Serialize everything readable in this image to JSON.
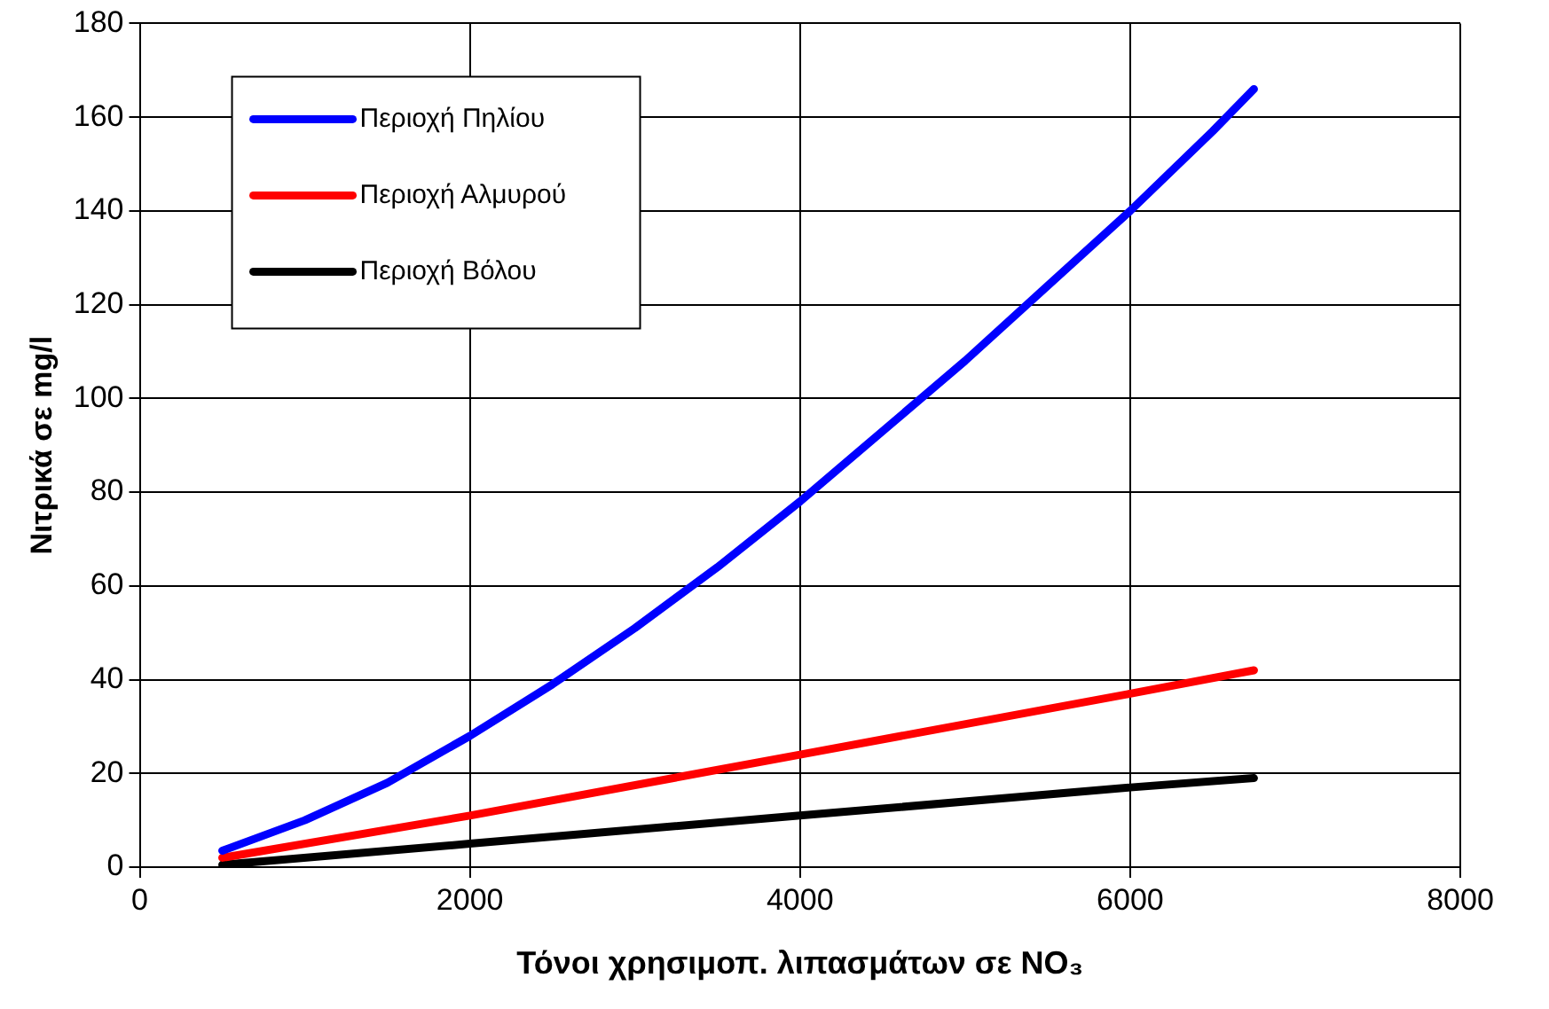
{
  "chart_data": {
    "type": "line",
    "xlabel": "Τόνοι χρησιμοπ. λιπασμάτων σε NO₃",
    "ylabel": "Νιτρικά σε mg/l",
    "xlim": [
      0,
      8000
    ],
    "xticks": [
      0,
      2000,
      4000,
      6000,
      8000
    ],
    "ylim": [
      0,
      180
    ],
    "yticks": [
      0,
      20,
      40,
      60,
      80,
      100,
      120,
      140,
      160,
      180
    ],
    "grid": true,
    "legend": "top left",
    "marker": "none",
    "line_style": "solid",
    "series": [
      {
        "name": "Περιοχή Πηλίου",
        "color": "#0000ff",
        "x": [
          500,
          1000,
          1500,
          2000,
          2500,
          3000,
          3500,
          4000,
          4500,
          5000,
          5500,
          6000,
          6500,
          6750
        ],
        "values": [
          3.5,
          10,
          18,
          28,
          39,
          51,
          64,
          78,
          93,
          108,
          124,
          140,
          157,
          166
        ]
      },
      {
        "name": "Περιοχή Αλμυρού",
        "color": "#ff0000",
        "x": [
          500,
          2000,
          4000,
          6000,
          6750
        ],
        "values": [
          2,
          11,
          24,
          37,
          42
        ]
      },
      {
        "name": "Περιοχή Βόλου",
        "color": "#000000",
        "x": [
          500,
          2000,
          4000,
          6000,
          6750
        ],
        "values": [
          0.5,
          5,
          11,
          17,
          19
        ]
      }
    ]
  }
}
